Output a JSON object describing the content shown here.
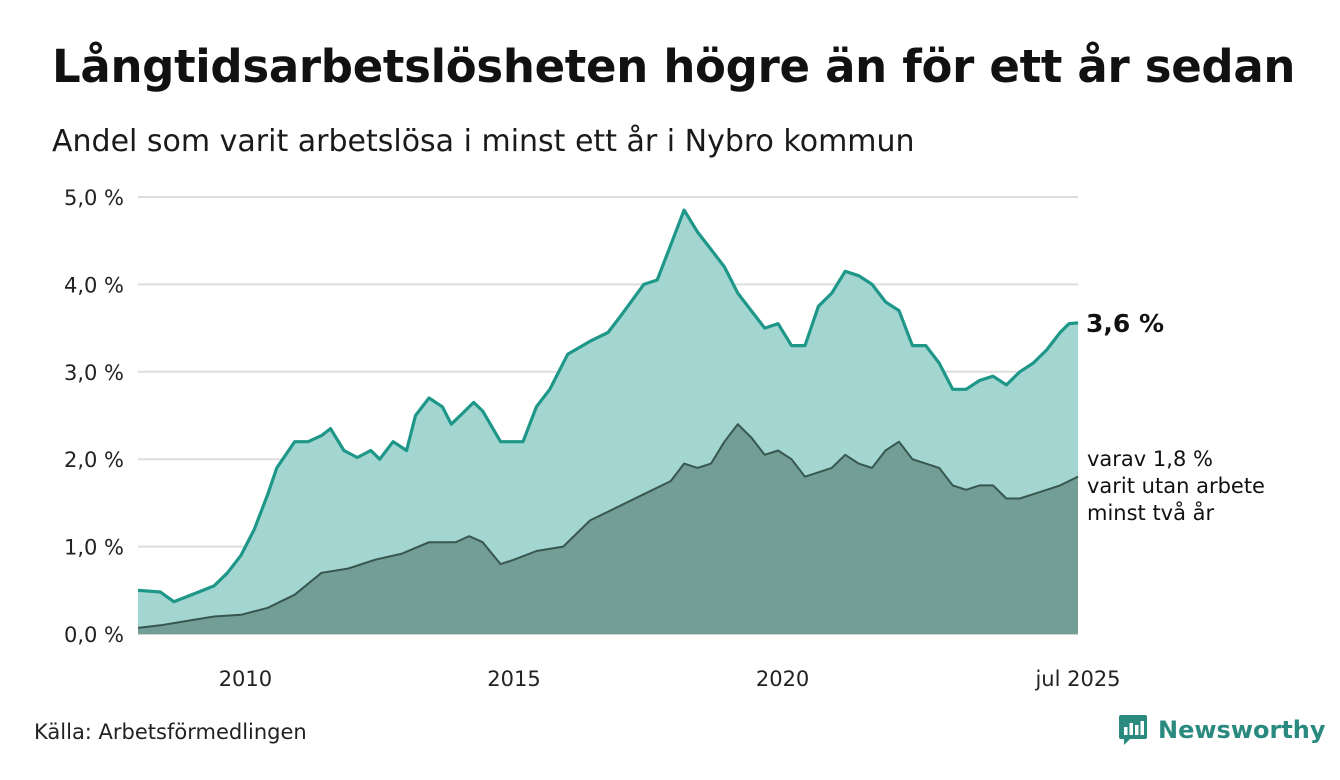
{
  "title": "Långtidsarbetslösheten högre än för ett år sedan",
  "subtitle": "Andel som varit arbetslösa i minst ett år i Nybro kommun",
  "source": "Källa: Arbetsförmedlingen",
  "brand": "Newsworthy",
  "colors": {
    "total_line": "#1e9789",
    "total_fill": "#a3d6d0",
    "two_year_line": "#37574f",
    "two_year_fill": "#739e96",
    "grid": "#dddddd",
    "brand": "#2a8a80"
  },
  "chart_data": {
    "type": "area",
    "title": "Långtidsarbetslösheten högre än för ett år sedan",
    "subtitle": "Andel som varit arbetslösa i minst ett år i Nybro kommun",
    "xlabel": "",
    "ylabel": "",
    "x_range": [
      "2008-01",
      "2025-07"
    ],
    "ylim": [
      0,
      5
    ],
    "y_ticks": [
      {
        "value": 0,
        "label": "0,0 %"
      },
      {
        "value": 1,
        "label": "1,0 %"
      },
      {
        "value": 2,
        "label": "2,0 %"
      },
      {
        "value": 3,
        "label": "3,0 %"
      },
      {
        "value": 4,
        "label": "4,0 %"
      },
      {
        "value": 5,
        "label": "5,0 %"
      }
    ],
    "x_ticks": [
      {
        "value": "2010-01",
        "label": "2010"
      },
      {
        "value": "2015-01",
        "label": "2015"
      },
      {
        "value": "2020-01",
        "label": "2020"
      },
      {
        "value": "2025-07",
        "label": "jul 2025"
      }
    ],
    "grid": true,
    "series": [
      {
        "id": "total",
        "end_label": "3,6 %",
        "points": [
          [
            "2008-01",
            0.5
          ],
          [
            "2008-06",
            0.48
          ],
          [
            "2008-09",
            0.37
          ],
          [
            "2009-01",
            0.45
          ],
          [
            "2009-06",
            0.55
          ],
          [
            "2009-09",
            0.7
          ],
          [
            "2009-12",
            0.9
          ],
          [
            "2010-03",
            1.2
          ],
          [
            "2010-06",
            1.6
          ],
          [
            "2010-08",
            1.9
          ],
          [
            "2010-12",
            2.2
          ],
          [
            "2011-03",
            2.2
          ],
          [
            "2011-06",
            2.27
          ],
          [
            "2011-08",
            2.35
          ],
          [
            "2011-11",
            2.1
          ],
          [
            "2012-02",
            2.02
          ],
          [
            "2012-05",
            2.1
          ],
          [
            "2012-07",
            2.0
          ],
          [
            "2012-10",
            2.2
          ],
          [
            "2013-01",
            2.1
          ],
          [
            "2013-03",
            2.5
          ],
          [
            "2013-06",
            2.7
          ],
          [
            "2013-09",
            2.6
          ],
          [
            "2013-11",
            2.4
          ],
          [
            "2014-01",
            2.5
          ],
          [
            "2014-04",
            2.65
          ],
          [
            "2014-06",
            2.55
          ],
          [
            "2014-10",
            2.2
          ],
          [
            "2014-12",
            2.2
          ],
          [
            "2015-03",
            2.2
          ],
          [
            "2015-06",
            2.6
          ],
          [
            "2015-09",
            2.8
          ],
          [
            "2016-01",
            3.2
          ],
          [
            "2016-06",
            3.35
          ],
          [
            "2016-10",
            3.45
          ],
          [
            "2017-01",
            3.65
          ],
          [
            "2017-06",
            4.0
          ],
          [
            "2017-09",
            4.05
          ],
          [
            "2017-12",
            4.45
          ],
          [
            "2018-03",
            4.85
          ],
          [
            "2018-06",
            4.6
          ],
          [
            "2018-09",
            4.4
          ],
          [
            "2018-12",
            4.2
          ],
          [
            "2019-03",
            3.9
          ],
          [
            "2019-06",
            3.7
          ],
          [
            "2019-09",
            3.5
          ],
          [
            "2019-12",
            3.55
          ],
          [
            "2020-03",
            3.3
          ],
          [
            "2020-06",
            3.3
          ],
          [
            "2020-09",
            3.75
          ],
          [
            "2020-12",
            3.9
          ],
          [
            "2021-03",
            4.15
          ],
          [
            "2021-06",
            4.1
          ],
          [
            "2021-09",
            4.0
          ],
          [
            "2021-12",
            3.8
          ],
          [
            "2022-03",
            3.7
          ],
          [
            "2022-06",
            3.3
          ],
          [
            "2022-09",
            3.3
          ],
          [
            "2022-12",
            3.1
          ],
          [
            "2023-03",
            2.8
          ],
          [
            "2023-06",
            2.8
          ],
          [
            "2023-09",
            2.9
          ],
          [
            "2023-12",
            2.95
          ],
          [
            "2024-03",
            2.85
          ],
          [
            "2024-06",
            3.0
          ],
          [
            "2024-09",
            3.1
          ],
          [
            "2024-12",
            3.25
          ],
          [
            "2025-03",
            3.45
          ],
          [
            "2025-05",
            3.55
          ],
          [
            "2025-07",
            3.56
          ]
        ]
      },
      {
        "id": "two_years",
        "end_label": [
          "varav 1,8 %",
          "varit utan arbete",
          "minst två år"
        ],
        "points": [
          [
            "2008-01",
            0.07
          ],
          [
            "2008-06",
            0.1
          ],
          [
            "2008-12",
            0.15
          ],
          [
            "2009-06",
            0.2
          ],
          [
            "2009-12",
            0.22
          ],
          [
            "2010-06",
            0.3
          ],
          [
            "2010-12",
            0.45
          ],
          [
            "2011-06",
            0.7
          ],
          [
            "2011-12",
            0.75
          ],
          [
            "2012-06",
            0.85
          ],
          [
            "2012-12",
            0.92
          ],
          [
            "2013-06",
            1.05
          ],
          [
            "2013-12",
            1.05
          ],
          [
            "2014-03",
            1.12
          ],
          [
            "2014-06",
            1.05
          ],
          [
            "2014-10",
            0.8
          ],
          [
            "2015-01",
            0.85
          ],
          [
            "2015-06",
            0.95
          ],
          [
            "2015-12",
            1.0
          ],
          [
            "2016-06",
            1.3
          ],
          [
            "2016-12",
            1.45
          ],
          [
            "2017-06",
            1.6
          ],
          [
            "2017-12",
            1.75
          ],
          [
            "2018-03",
            1.95
          ],
          [
            "2018-06",
            1.9
          ],
          [
            "2018-09",
            1.95
          ],
          [
            "2018-12",
            2.2
          ],
          [
            "2019-03",
            2.4
          ],
          [
            "2019-06",
            2.25
          ],
          [
            "2019-09",
            2.05
          ],
          [
            "2019-12",
            2.1
          ],
          [
            "2020-03",
            2.0
          ],
          [
            "2020-06",
            1.8
          ],
          [
            "2020-09",
            1.85
          ],
          [
            "2020-12",
            1.9
          ],
          [
            "2021-03",
            2.05
          ],
          [
            "2021-06",
            1.95
          ],
          [
            "2021-09",
            1.9
          ],
          [
            "2021-12",
            2.1
          ],
          [
            "2022-03",
            2.2
          ],
          [
            "2022-06",
            2.0
          ],
          [
            "2022-09",
            1.95
          ],
          [
            "2022-12",
            1.9
          ],
          [
            "2023-03",
            1.7
          ],
          [
            "2023-06",
            1.65
          ],
          [
            "2023-09",
            1.7
          ],
          [
            "2023-12",
            1.7
          ],
          [
            "2024-03",
            1.55
          ],
          [
            "2024-06",
            1.55
          ],
          [
            "2024-09",
            1.6
          ],
          [
            "2024-12",
            1.65
          ],
          [
            "2025-03",
            1.7
          ],
          [
            "2025-07",
            1.8
          ]
        ]
      }
    ]
  }
}
